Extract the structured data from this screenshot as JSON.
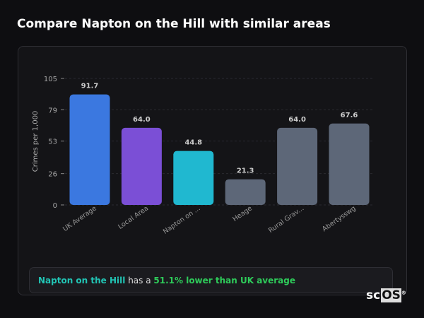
{
  "title": "Compare Napton on the Hill with similar areas",
  "chart_data": {
    "type": "bar",
    "categories": [
      "UK Average",
      "Local Area",
      "Napton on ...",
      "Heage",
      "Rural Grav...",
      "Abertysswg"
    ],
    "values": [
      91.7,
      64.0,
      44.8,
      21.3,
      64.0,
      67.6
    ],
    "labels": [
      "91.7",
      "64.0",
      "44.8",
      "21.3",
      "64.0",
      "67.6"
    ],
    "colors": [
      "#3b78e0",
      "#7b4fd6",
      "#20b8d0",
      "#5d6778",
      "#5d6778",
      "#5d6778"
    ],
    "ylabel": "Crimes per 1,000",
    "yticks": [
      0,
      26,
      53,
      79,
      105
    ],
    "ylim": [
      0,
      105
    ],
    "grid": true
  },
  "banner": {
    "place": "Napton on the Hill",
    "mid": " has a ",
    "stat": "51.1% lower than UK average"
  },
  "logo": {
    "pre": "sc",
    "box": "OS",
    "mark": "®"
  }
}
